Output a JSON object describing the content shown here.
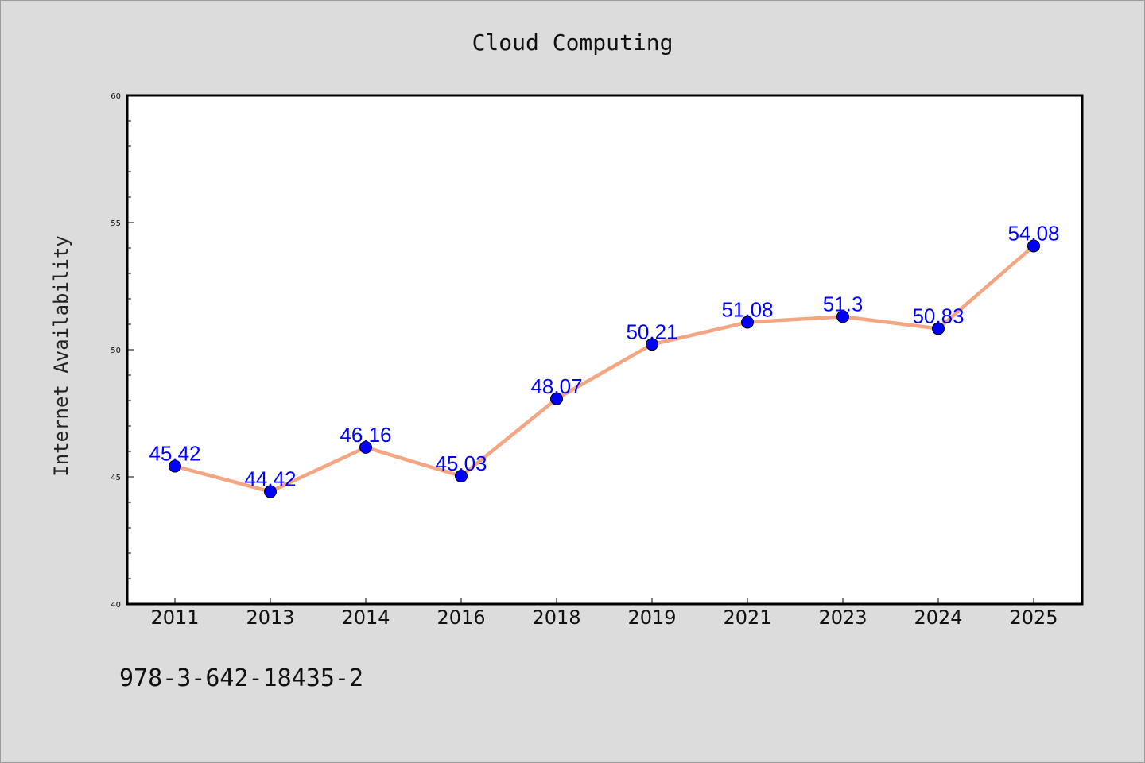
{
  "colors": {
    "background": "#dcdcdc",
    "plot_background": "#ffffff",
    "line": "#f4a582",
    "marker": "#0000ff",
    "data_label": "#0000ff"
  },
  "footer": {
    "text": "978-3-642-18435-2"
  },
  "chart_data": {
    "type": "line",
    "title": "Cloud Computing",
    "xlabel": "",
    "ylabel": "Internet Availability",
    "categories": [
      "2011",
      "2013",
      "2014",
      "2016",
      "2018",
      "2019",
      "2021",
      "2023",
      "2024",
      "2025"
    ],
    "values": [
      45.42,
      44.42,
      46.16,
      45.03,
      48.07,
      50.21,
      51.08,
      51.3,
      50.83,
      54.08
    ],
    "data_labels": [
      "45.42",
      "44.42",
      "46.16",
      "45.03",
      "48.07",
      "50.21",
      "51.08",
      "51.3",
      "50.83",
      "54.08"
    ],
    "ylim": [
      40,
      60
    ],
    "yticks": [
      40,
      45,
      50,
      55,
      60
    ],
    "grid": false,
    "legend": "none",
    "markers": "filled circles"
  }
}
